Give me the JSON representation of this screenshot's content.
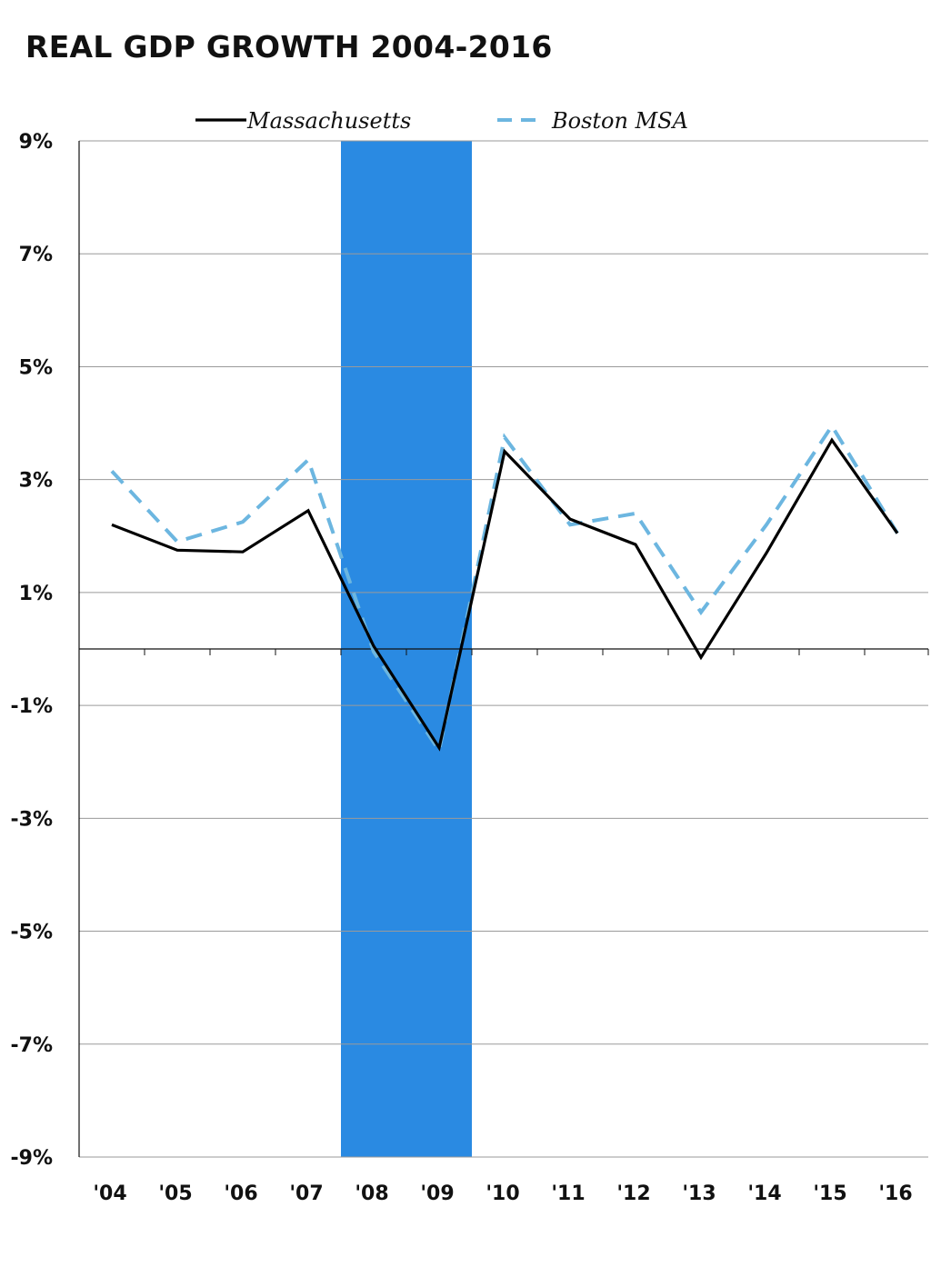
{
  "chart_data": {
    "type": "line",
    "title": "REAL GDP GROWTH 2004-2016",
    "categories": [
      "'04",
      "'05",
      "'06",
      "'07",
      "'08",
      "'09",
      "'10",
      "'11",
      "'12",
      "'13",
      "'14",
      "'15",
      "'16"
    ],
    "series": [
      {
        "name": "Massachusetts",
        "color": "#000000",
        "style": "solid",
        "values": [
          2.2,
          1.75,
          1.72,
          2.45,
          0.05,
          -1.75,
          3.5,
          2.3,
          1.85,
          -0.15,
          1.7,
          3.7,
          2.05
        ]
      },
      {
        "name": "Boston MSA",
        "color": "#6cb6e0",
        "style": "dashed",
        "values": [
          3.15,
          1.9,
          2.25,
          3.35,
          -0.05,
          -1.8,
          3.75,
          2.2,
          2.4,
          0.65,
          2.2,
          3.95,
          2.05
        ]
      }
    ],
    "recession_band": {
      "from_category": "'08",
      "to_category": "'09",
      "color": "#2a8ae2"
    },
    "ylim": [
      -9,
      9
    ],
    "yticks": [
      9,
      7,
      5,
      3,
      1,
      -1,
      -3,
      -5,
      -7,
      -9
    ],
    "ytick_labels": [
      "9%",
      "7%",
      "5%",
      "3%",
      "1%",
      "-1%",
      "-3%",
      "-5%",
      "-7%",
      "-9%"
    ],
    "grid": true,
    "legend_position": "top"
  }
}
